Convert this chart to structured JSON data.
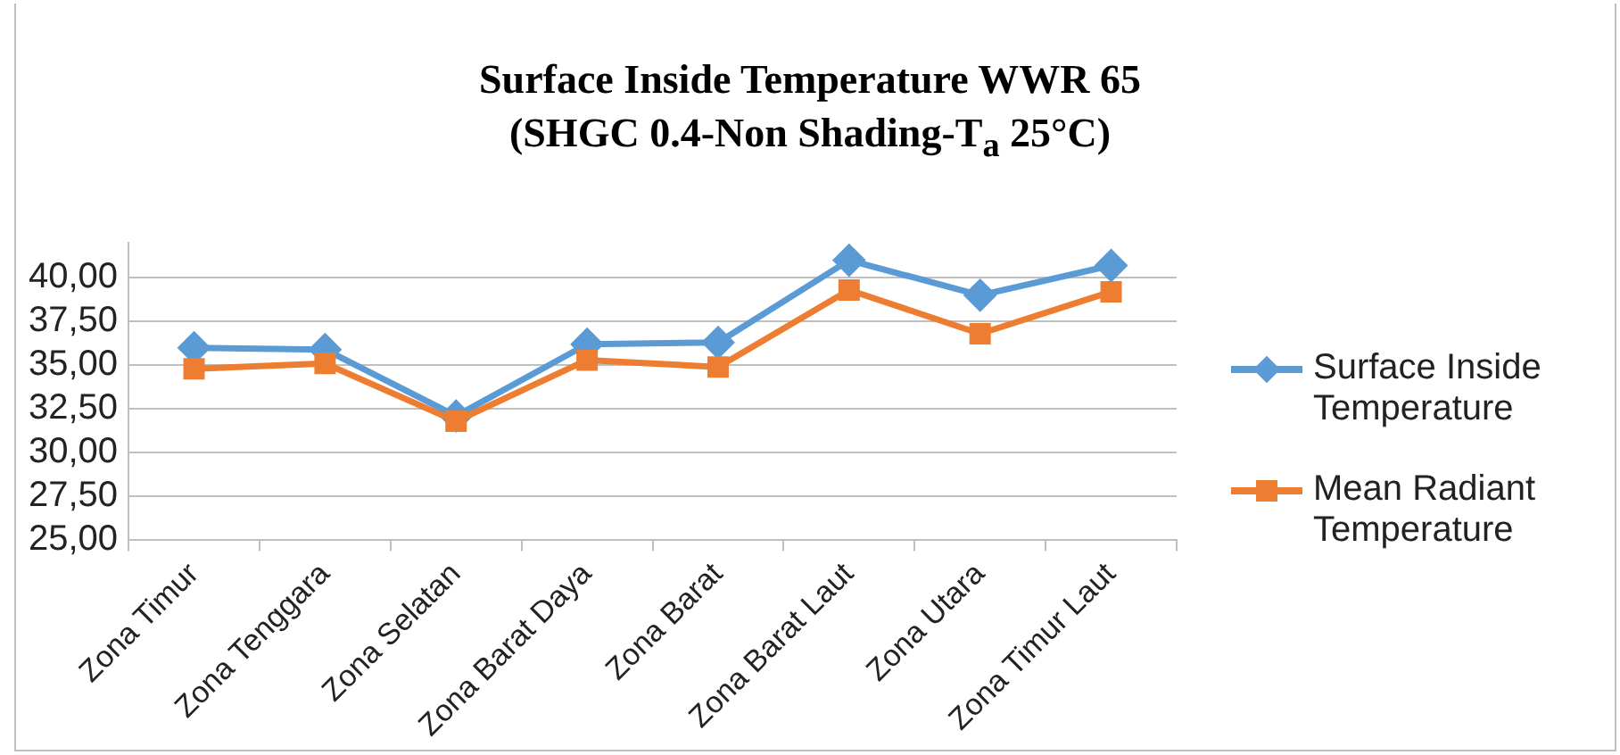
{
  "chart_data": {
    "type": "line",
    "title": "Surface Inside Temperature  WWR 65\n(SHGC 0.4-Non Shading-T$_{a}$ 25°C)",
    "categories": [
      "Zona Timur",
      "Zona Tenggara",
      "Zona Selatan",
      "Zona Barat Daya",
      "Zona Barat",
      "Zona Barat Laut",
      "Zona Utara",
      "Zona Timur Laut"
    ],
    "series": [
      {
        "name": "Surface Inside Temperature",
        "color": "#5b9bd5",
        "marker": "diamond",
        "values": [
          36.0,
          35.9,
          32.1,
          36.2,
          36.3,
          41.0,
          39.0,
          40.7
        ]
      },
      {
        "name": "Mean Radiant Temperature",
        "color": "#ed7d31",
        "marker": "square",
        "values": [
          34.8,
          35.1,
          31.8,
          35.3,
          34.9,
          39.3,
          36.8,
          39.2
        ]
      }
    ],
    "ylim": [
      25,
      42
    ],
    "yticks": [
      {
        "value": 25,
        "label": "25,00"
      },
      {
        "value": 27.5,
        "label": "27,50"
      },
      {
        "value": 30,
        "label": "30,00"
      },
      {
        "value": 32.5,
        "label": "32,50"
      },
      {
        "value": 35,
        "label": "35,00"
      },
      {
        "value": 37.5,
        "label": "37,50"
      },
      {
        "value": 40,
        "label": "40,00"
      }
    ],
    "grid": "y",
    "legend": "right",
    "line_style": "solid"
  }
}
